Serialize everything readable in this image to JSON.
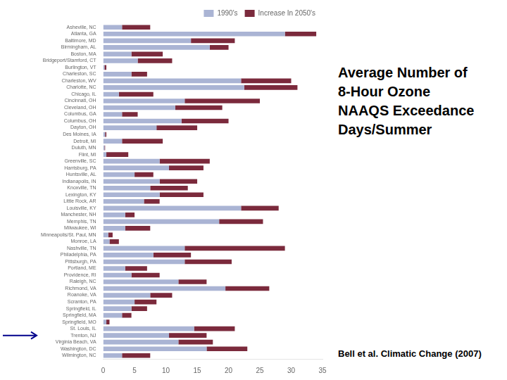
{
  "chart_data": {
    "type": "bar",
    "orientation": "horizontal",
    "stacked": true,
    "title": "Average Number of\n8-Hour Ozone\nNAAQS Exceedance\nDays/Summer",
    "categories": [
      "Asheville, NC",
      "Atlanta, GA",
      "Baltimore, MD",
      "Birmingham, AL",
      "Boston, MA",
      "Bridgeport/Stamford, CT",
      "Burlington, VT",
      "Charleston, SC",
      "Charleston, WV",
      "Charlotte, NC",
      "Chicago, IL",
      "Cincinnati, OH",
      "Cleveland, OH",
      "Columbus, GA",
      "Columbus, OH",
      "Dayton, OH",
      "Des Moines, IA",
      "Detroit, MI",
      "Duluth, MN",
      "Flint, MI",
      "Greenville, SC",
      "Harrisburg, PA",
      "Huntsville, AL",
      "Indianapolis, IN",
      "Knoxville, TN",
      "Lexington, KY",
      "Little Rock, AR",
      "Louisville, KY",
      "Manchester, NH",
      "Memphis, TN",
      "Milwaukee, WI",
      "Minneapolis/St. Paul, MN",
      "Monroe, LA",
      "Nashville, TN",
      "Philadelphia, PA",
      "Pittsburgh, PA",
      "Portland, ME",
      "Providence, RI",
      "Raleigh, NC",
      "Richmond, VA",
      "Roanoke, VA",
      "Scranton, PA",
      "Springfield, IL",
      "Springfield, MA",
      "Springfield, MO",
      "St. Louis, IL",
      "Trenton, NJ",
      "Virginia Beach, VA",
      "Washington, DC",
      "Wilmington, NC"
    ],
    "series": [
      {
        "name": "1990's",
        "color": "#aab4d4",
        "values": [
          3.0,
          29.0,
          14.0,
          17.0,
          4.5,
          5.5,
          0.2,
          4.5,
          22.0,
          22.5,
          2.5,
          13.0,
          11.5,
          3.0,
          12.5,
          8.5,
          0.3,
          3.0,
          0.2,
          0.5,
          9.0,
          10.5,
          5.0,
          9.0,
          7.5,
          9.0,
          6.5,
          22.0,
          3.5,
          18.5,
          3.5,
          0.8,
          1.0,
          13.0,
          8.0,
          13.0,
          3.5,
          4.5,
          12.0,
          19.5,
          7.5,
          5.0,
          4.5,
          3.0,
          0.5,
          14.5,
          10.5,
          12.0,
          16.5,
          3.0
        ]
      },
      {
        "name": "Increase In 2050's",
        "color": "#7b2a3c",
        "values": [
          4.5,
          5.0,
          7.0,
          3.0,
          5.0,
          5.5,
          0.3,
          2.5,
          8.0,
          8.5,
          5.5,
          12.0,
          7.5,
          2.5,
          7.5,
          6.5,
          0.2,
          6.5,
          0.1,
          3.5,
          8.0,
          5.5,
          3.0,
          6.0,
          6.0,
          7.0,
          2.5,
          6.0,
          1.5,
          7.0,
          4.0,
          0.7,
          1.5,
          16.0,
          6.0,
          7.5,
          3.5,
          4.5,
          4.5,
          7.0,
          3.5,
          3.5,
          2.5,
          1.5,
          0.5,
          6.5,
          6.0,
          5.5,
          6.5,
          4.5
        ]
      }
    ],
    "xlim": [
      0,
      35
    ],
    "xticks": [
      0,
      5,
      10,
      15,
      20,
      25,
      30,
      35
    ],
    "grid": false,
    "legend": "upper right",
    "annotations": [
      {
        "arrow_to": "Trenton, NJ",
        "color": "#00008B"
      },
      {
        "text": "Bell et al. Climatic Change (2007)"
      }
    ]
  }
}
